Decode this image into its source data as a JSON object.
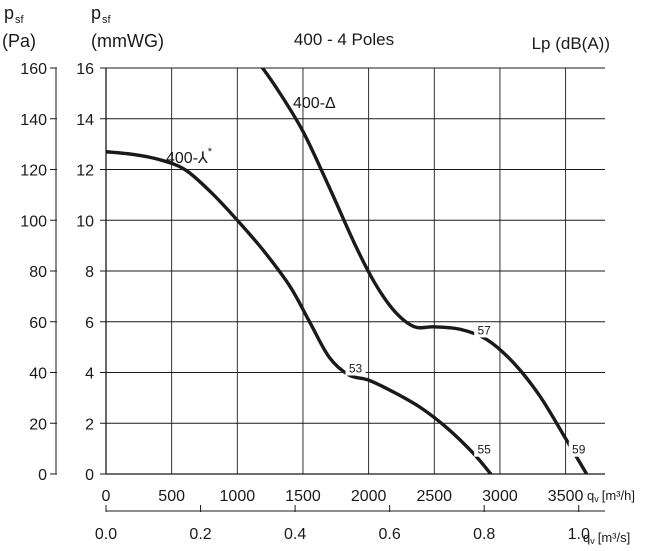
{
  "chart_data": {
    "type": "line",
    "title": "400 - 4 Poles",
    "colors": {
      "curve": "#1a1a1a",
      "grid": "#1a1a1a",
      "db_label": "#3b68b0"
    },
    "y_axis_pa": {
      "symbol": "p",
      "subscript": "sf",
      "unit": "(Pa)",
      "ticks": [
        "0",
        "20",
        "40",
        "60",
        "80",
        "100",
        "120",
        "140",
        "160"
      ],
      "range": [
        0,
        160
      ]
    },
    "y_axis_mmwg": {
      "symbol": "p",
      "subscript": "sf",
      "unit": "(mmWG)",
      "ticks": [
        "0",
        "2",
        "4",
        "6",
        "8",
        "10",
        "12",
        "14",
        "16"
      ],
      "range": [
        0,
        16
      ]
    },
    "x_axis_m3h": {
      "ticks": [
        "0",
        "500",
        "1000",
        "1500",
        "2000",
        "2500",
        "3000",
        "3500"
      ],
      "range": [
        0,
        3800
      ],
      "label_symbol": "q",
      "label_sub": "v",
      "label_unit": "[m³/h]"
    },
    "x_axis_m3s": {
      "ticks": [
        "0.0",
        "0.2",
        "0.4",
        "0.6",
        "0.8",
        "1.0"
      ],
      "range": [
        0,
        1.0556
      ],
      "label_symbol": "q",
      "label_sub": "v",
      "label_unit": "[m³/s]"
    },
    "sound_label": "Lp (dB(A))",
    "grid": true,
    "series": [
      {
        "name": "400-⅄*",
        "label_main": "400-⅄",
        "label_sup": "*",
        "points": [
          [
            0,
            127
          ],
          [
            200,
            126
          ],
          [
            400,
            124
          ],
          [
            600,
            120
          ],
          [
            800,
            111
          ],
          [
            1000,
            100
          ],
          [
            1200,
            88
          ],
          [
            1400,
            74
          ],
          [
            1550,
            60
          ],
          [
            1700,
            46
          ],
          [
            1850,
            39
          ],
          [
            2000,
            37
          ],
          [
            2200,
            32
          ],
          [
            2400,
            26
          ],
          [
            2600,
            18
          ],
          [
            2800,
            8
          ],
          [
            2930,
            0
          ]
        ],
        "db_labels": [
          {
            "text": "53",
            "x": 1900,
            "y": 40
          },
          {
            "text": "55",
            "x": 2880,
            "y": 8
          }
        ]
      },
      {
        "name": "400-Δ",
        "label_main": "400-Δ",
        "label_sup": "",
        "points": [
          [
            1150,
            163
          ],
          [
            1300,
            152
          ],
          [
            1500,
            135
          ],
          [
            1700,
            113
          ],
          [
            1900,
            90
          ],
          [
            2050,
            75
          ],
          [
            2200,
            64
          ],
          [
            2350,
            58
          ],
          [
            2500,
            58
          ],
          [
            2700,
            57
          ],
          [
            2900,
            53
          ],
          [
            3100,
            44
          ],
          [
            3300,
            31
          ],
          [
            3500,
            14
          ],
          [
            3660,
            0
          ]
        ],
        "db_labels": [
          {
            "text": "57",
            "x": 2880,
            "y": 55
          },
          {
            "text": "59",
            "x": 3600,
            "y": 8
          }
        ]
      }
    ]
  }
}
